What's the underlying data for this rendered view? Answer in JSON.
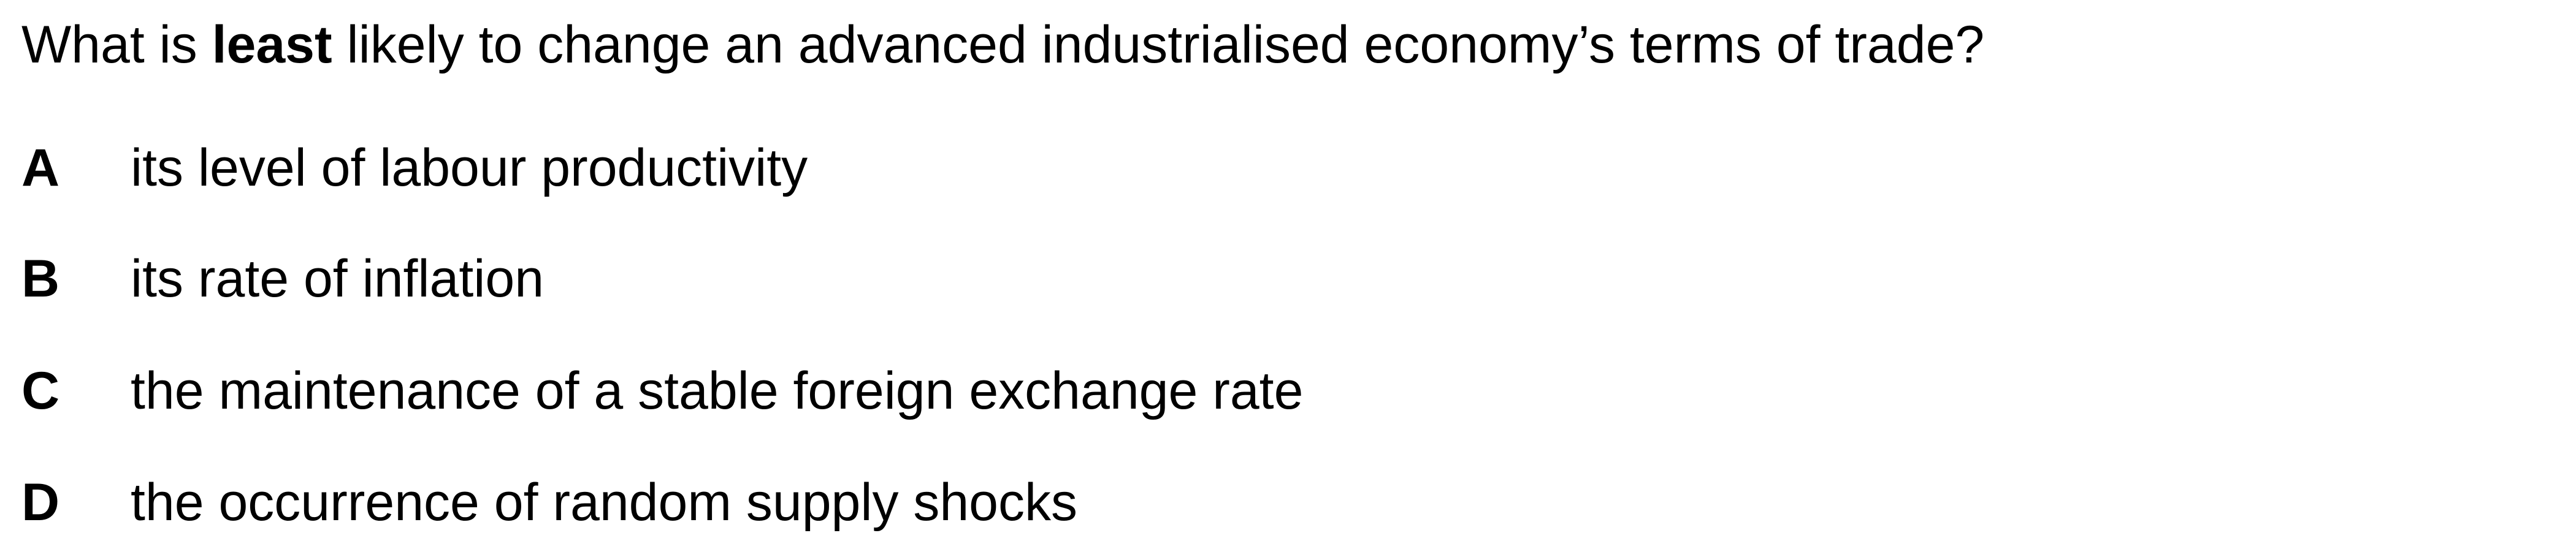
{
  "question": {
    "prefix": "What is ",
    "emphasis": "least",
    "suffix": " likely to change an advanced industrialised economy’s terms of trade?"
  },
  "options": [
    {
      "letter": "A",
      "text": "its level of labour productivity"
    },
    {
      "letter": "B",
      "text": "its rate of inflation"
    },
    {
      "letter": "C",
      "text": "the maintenance of a stable foreign exchange rate"
    },
    {
      "letter": "D",
      "text": "the occurrence of random supply shocks"
    }
  ]
}
